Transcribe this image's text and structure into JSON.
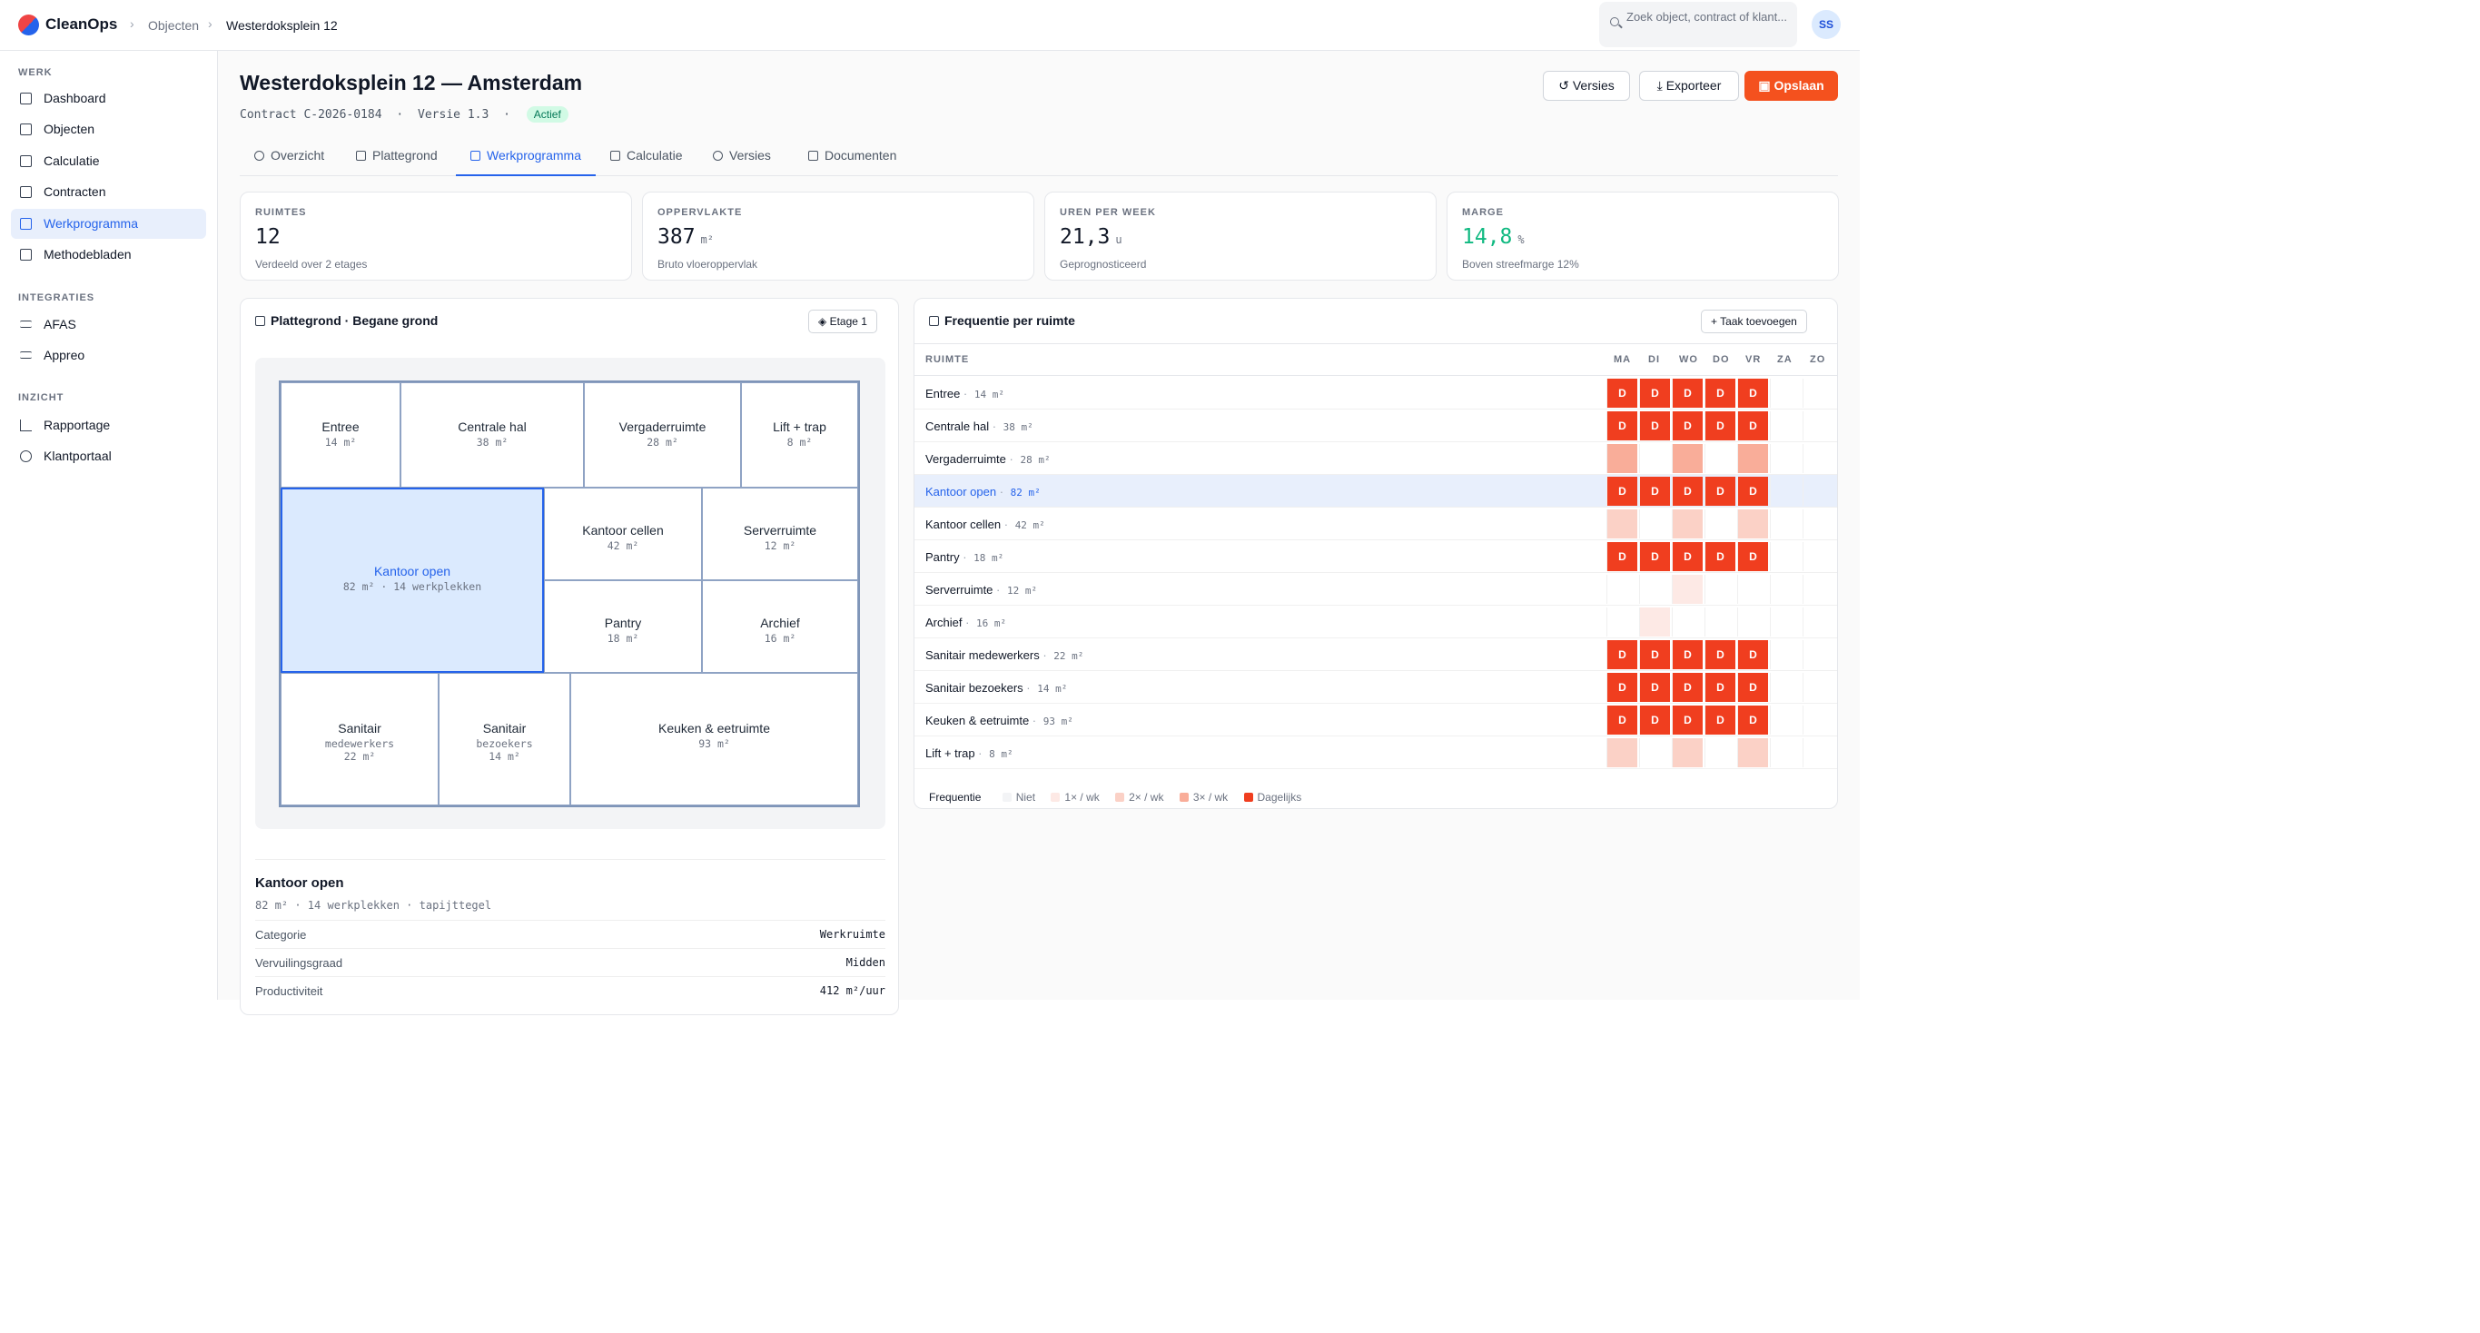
{
  "app": {
    "name": "CleanOps"
  },
  "breadcrumb": [
    "Objecten",
    "Westerdoksplein 12"
  ],
  "search": {
    "placeholder": "Zoek object, contract of klant..."
  },
  "user": {
    "initials": "SS"
  },
  "sidebar": {
    "sections": [
      {
        "title": "WERK",
        "items": [
          "Dashboard",
          "Objecten",
          "Calculatie",
          "Contracten",
          "Werkprogramma",
          "Methodebladen"
        ]
      },
      {
        "title": "INTEGRATIES",
        "items": [
          "AFAS",
          "Appreo"
        ]
      },
      {
        "title": "INZICHT",
        "items": [
          "Rapportage",
          "Klantportaal"
        ]
      }
    ],
    "active": "Werkprogramma"
  },
  "page": {
    "title": "Westerdoksplein 12 — Amsterdam",
    "contract": "Contract C-2026-0184",
    "version": "Versie 1.3",
    "status": "Actief"
  },
  "actions": {
    "versions": "Versies",
    "export": "Exporteer",
    "save": "Opslaan"
  },
  "tabs": [
    "Overzicht",
    "Plattegrond",
    "Werkprogramma",
    "Calculatie",
    "Versies",
    "Documenten"
  ],
  "active_tab": "Werkprogramma",
  "stats": [
    {
      "label": "RUIMTES",
      "value": "12",
      "unit": "",
      "sub": "Verdeeld over 2 etages"
    },
    {
      "label": "OPPERVLAKTE",
      "value": "387",
      "unit": "m²",
      "sub": "Bruto vloeroppervlak"
    },
    {
      "label": "UREN PER WEEK",
      "value": "21,3",
      "unit": "u",
      "sub": "Geprognosticeerd"
    },
    {
      "label": "MARGE",
      "value": "14,8",
      "unit": "%",
      "sub": "Boven streefmarge 12%"
    }
  ],
  "floorplan": {
    "title": "Plattegrond · Begane grond",
    "floor_button": "Etage 1",
    "rooms": {
      "entree": {
        "name": "Entree",
        "size": "14 m²"
      },
      "centrale_hal": {
        "name": "Centrale hal",
        "size": "38 m²"
      },
      "vergaderruimte": {
        "name": "Vergaderruimte",
        "size": "28 m²"
      },
      "lift": {
        "name": "Lift + trap",
        "size": "8 m²"
      },
      "kantoor_open": {
        "name": "Kantoor open",
        "size": "82 m² · 14 werkplekken"
      },
      "kantoor_cellen": {
        "name": "Kantoor cellen",
        "size": "42 m²"
      },
      "serverruimte": {
        "name": "Serverruimte",
        "size": "12 m²"
      },
      "pantry": {
        "name": "Pantry",
        "size": "18 m²"
      },
      "archief": {
        "name": "Archief",
        "size": "16 m²"
      },
      "sanitair_mw": {
        "name": "Sanitair",
        "sub": "medewerkers",
        "size": "22 m²"
      },
      "sanitair_bz": {
        "name": "Sanitair",
        "sub": "bezoekers",
        "size": "14 m²"
      },
      "keuken": {
        "name": "Keuken & eetruimte",
        "size": "93 m²"
      }
    }
  },
  "detail": {
    "name": "Kantoor open",
    "meta": "82 m² · 14 werkplekken · tapijttegel",
    "rows": [
      {
        "key": "Categorie",
        "value": "Werkruimte"
      },
      {
        "key": "Vervuilingsgraad",
        "value": "Midden"
      },
      {
        "key": "Productiviteit",
        "value": "412 m²/uur"
      }
    ]
  },
  "frequency": {
    "title": "Frequentie per ruimte",
    "add_button": "Taak toevoegen",
    "col_header": "RUIMTE",
    "days": [
      "MA",
      "DI",
      "WO",
      "DO",
      "VR",
      "ZA",
      "ZO"
    ],
    "daily_label": "D",
    "rows": [
      {
        "name": "Entree",
        "size": "14 m²",
        "levels": [
          4,
          4,
          4,
          4,
          4,
          0,
          0
        ]
      },
      {
        "name": "Centrale hal",
        "size": "38 m²",
        "levels": [
          4,
          4,
          4,
          4,
          4,
          0,
          0
        ]
      },
      {
        "name": "Vergaderruimte",
        "size": "28 m²",
        "levels": [
          3,
          0,
          3,
          0,
          3,
          0,
          0
        ]
      },
      {
        "name": "Kantoor open",
        "size": "82 m²",
        "levels": [
          4,
          4,
          4,
          4,
          4,
          0,
          0
        ],
        "selected": true
      },
      {
        "name": "Kantoor cellen",
        "size": "42 m²",
        "levels": [
          2,
          0,
          2,
          0,
          2,
          0,
          0
        ]
      },
      {
        "name": "Pantry",
        "size": "18 m²",
        "levels": [
          4,
          4,
          4,
          4,
          4,
          0,
          0
        ]
      },
      {
        "name": "Serverruimte",
        "size": "12 m²",
        "levels": [
          0,
          0,
          1,
          0,
          0,
          0,
          0
        ]
      },
      {
        "name": "Archief",
        "size": "16 m²",
        "levels": [
          0,
          1,
          0,
          0,
          0,
          0,
          0
        ]
      },
      {
        "name": "Sanitair medewerkers",
        "size": "22 m²",
        "levels": [
          4,
          4,
          4,
          4,
          4,
          0,
          0
        ]
      },
      {
        "name": "Sanitair bezoekers",
        "size": "14 m²",
        "levels": [
          4,
          4,
          4,
          4,
          4,
          0,
          0
        ]
      },
      {
        "name": "Keuken & eetruimte",
        "size": "93 m²",
        "levels": [
          4,
          4,
          4,
          4,
          4,
          0,
          0
        ]
      },
      {
        "name": "Lift + trap",
        "size": "8 m²",
        "levels": [
          2,
          0,
          2,
          0,
          2,
          0,
          0
        ]
      }
    ],
    "legend": {
      "title": "Frequentie",
      "items": [
        "Niet",
        "1× / wk",
        "2× / wk",
        "3× / wk",
        "Dagelijks"
      ],
      "colors": [
        "#f3f4f6",
        "#fde9e5",
        "#fbd1c6",
        "#f9ad99",
        "#f03e1f"
      ]
    }
  }
}
